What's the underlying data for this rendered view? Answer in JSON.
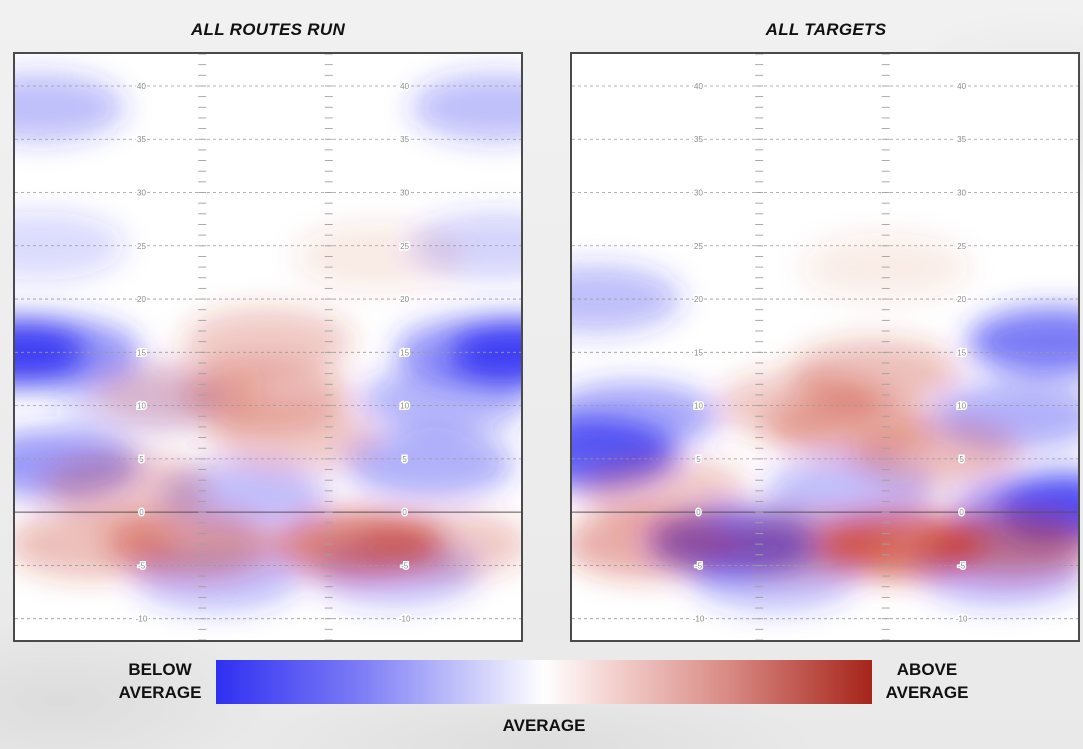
{
  "legend": {
    "low": "BELOW\nAVERAGE",
    "high": "ABOVE\nAVERAGE",
    "mid": "AVERAGE",
    "colors": {
      "low": "#2f2ff2",
      "mid": "#ffffff",
      "high": "#a6241a"
    }
  },
  "chart_data": [
    {
      "type": "heatmap",
      "title": "ALL ROUTES RUN",
      "ylim": [
        -12,
        43
      ],
      "y_ticks": [
        -10,
        -5,
        0,
        5,
        10,
        15,
        20,
        25,
        30,
        35,
        40
      ],
      "grid": true,
      "scale": "relative to average, -1 (below average) to +1 (above average)",
      "cells": [
        {
          "x": 0.0,
          "y": 15,
          "value": -0.95
        },
        {
          "x": 0.08,
          "y": 15,
          "value": -0.6
        },
        {
          "x": 1.0,
          "y": 15,
          "value": -0.95
        },
        {
          "x": 0.92,
          "y": 15,
          "value": -0.6
        },
        {
          "x": 0.05,
          "y": 38,
          "value": -0.35
        },
        {
          "x": 0.95,
          "y": 38,
          "value": -0.35
        },
        {
          "x": 0.05,
          "y": 25,
          "value": -0.2
        },
        {
          "x": 0.95,
          "y": 25,
          "value": -0.25
        },
        {
          "x": 0.08,
          "y": 4.5,
          "value": -0.55
        },
        {
          "x": 0.25,
          "y": 10.5,
          "value": -0.2
        },
        {
          "x": 0.85,
          "y": 10.5,
          "value": -0.4
        },
        {
          "x": 0.82,
          "y": 4.5,
          "value": -0.45
        },
        {
          "x": 0.45,
          "y": 1.5,
          "value": -0.35
        },
        {
          "x": 0.4,
          "y": -6,
          "value": -0.35
        },
        {
          "x": 0.75,
          "y": -5.5,
          "value": -0.35
        },
        {
          "x": 0.5,
          "y": 16,
          "value": 0.3
        },
        {
          "x": 0.5,
          "y": 11,
          "value": 0.35
        },
        {
          "x": 0.55,
          "y": 7,
          "value": 0.3
        },
        {
          "x": 0.32,
          "y": 11,
          "value": 0.25
        },
        {
          "x": 0.22,
          "y": 2.5,
          "value": 0.3
        },
        {
          "x": 0.35,
          "y": -3,
          "value": 0.5
        },
        {
          "x": 0.15,
          "y": -3,
          "value": 0.35
        },
        {
          "x": 0.68,
          "y": -3,
          "value": 0.7
        },
        {
          "x": 0.85,
          "y": -3,
          "value": 0.3
        },
        {
          "x": 0.72,
          "y": 24,
          "value": 0.12
        }
      ]
    },
    {
      "type": "heatmap",
      "title": "ALL TARGETS",
      "ylim": [
        -12,
        43
      ],
      "y_ticks": [
        -10,
        -5,
        0,
        5,
        10,
        15,
        20,
        25,
        30,
        35,
        40
      ],
      "grid": true,
      "scale": "relative to average, -1 (below average) to +1 (above average)",
      "cells": [
        {
          "x": 0.04,
          "y": 5.5,
          "value": -0.9
        },
        {
          "x": 0.12,
          "y": 9,
          "value": -0.5
        },
        {
          "x": 0.05,
          "y": 20,
          "value": -0.35
        },
        {
          "x": 0.95,
          "y": 16,
          "value": -0.75
        },
        {
          "x": 0.88,
          "y": 9,
          "value": -0.45
        },
        {
          "x": 0.92,
          "y": 0,
          "value": -0.55
        },
        {
          "x": 0.98,
          "y": 0.5,
          "value": -0.85
        },
        {
          "x": 0.32,
          "y": -2.8,
          "value": -0.85
        },
        {
          "x": 0.4,
          "y": -6,
          "value": -0.35
        },
        {
          "x": 0.85,
          "y": -5.5,
          "value": -0.4
        },
        {
          "x": 0.55,
          "y": 2,
          "value": -0.35
        },
        {
          "x": 0.6,
          "y": 13,
          "value": 0.35
        },
        {
          "x": 0.45,
          "y": 10,
          "value": 0.3
        },
        {
          "x": 0.55,
          "y": 8,
          "value": 0.35
        },
        {
          "x": 0.72,
          "y": 5.5,
          "value": 0.35
        },
        {
          "x": 0.18,
          "y": 2,
          "value": 0.3
        },
        {
          "x": 0.15,
          "y": -3,
          "value": 0.45
        },
        {
          "x": 0.45,
          "y": -3,
          "value": 0.35
        },
        {
          "x": 0.65,
          "y": -3,
          "value": 0.8
        },
        {
          "x": 0.87,
          "y": -3,
          "value": 0.55
        },
        {
          "x": 0.62,
          "y": 23,
          "value": 0.1
        }
      ]
    }
  ]
}
